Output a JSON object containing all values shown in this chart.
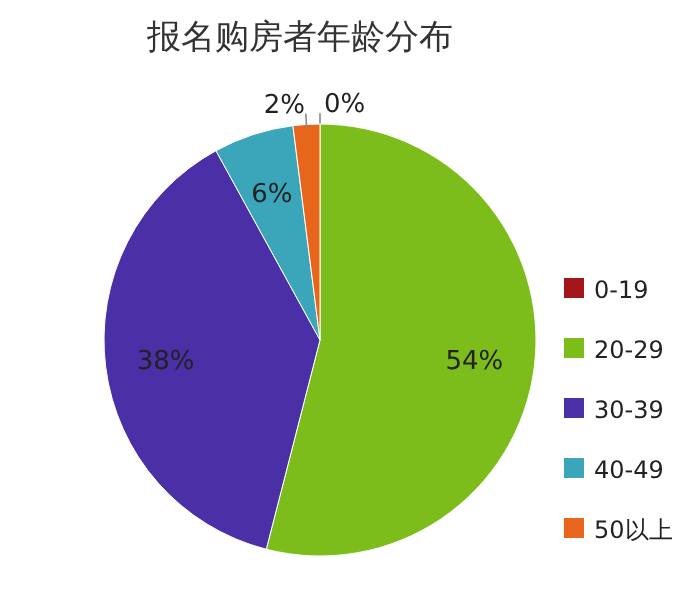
{
  "chart_data": {
    "type": "pie",
    "title": "报名购房者年龄分布",
    "categories": [
      "0-19",
      "20-29",
      "30-39",
      "40-49",
      "50以上"
    ],
    "values": [
      0,
      54,
      38,
      6,
      2
    ],
    "value_labels": [
      "0%",
      "54%",
      "38%",
      "6%",
      "2%"
    ],
    "colors": [
      "#a3161c",
      "#7dbd1b",
      "#4b2fa6",
      "#3ba6ba",
      "#e8661c"
    ],
    "legend": "right"
  }
}
